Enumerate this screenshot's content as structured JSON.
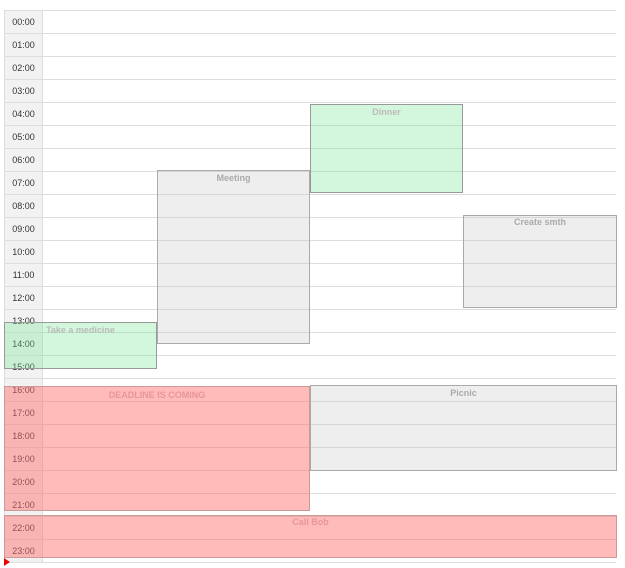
{
  "hours": [
    "00:00",
    "01:00",
    "02:00",
    "03:00",
    "04:00",
    "05:00",
    "06:00",
    "07:00",
    "08:00",
    "09:00",
    "10:00",
    "11:00",
    "12:00",
    "13:00",
    "14:00",
    "15:00",
    "16:00",
    "17:00",
    "18:00",
    "19:00",
    "20:00",
    "21:00",
    "22:00",
    "23:00"
  ],
  "events": [
    {
      "title": "Dinner"
    },
    {
      "title": "Meeting"
    },
    {
      "title": "Create smth"
    },
    {
      "title": "Take a medicine"
    },
    {
      "title": "DEADLINE IS COMING"
    },
    {
      "title": "Picnic"
    },
    {
      "title": "Call Bob"
    }
  ]
}
